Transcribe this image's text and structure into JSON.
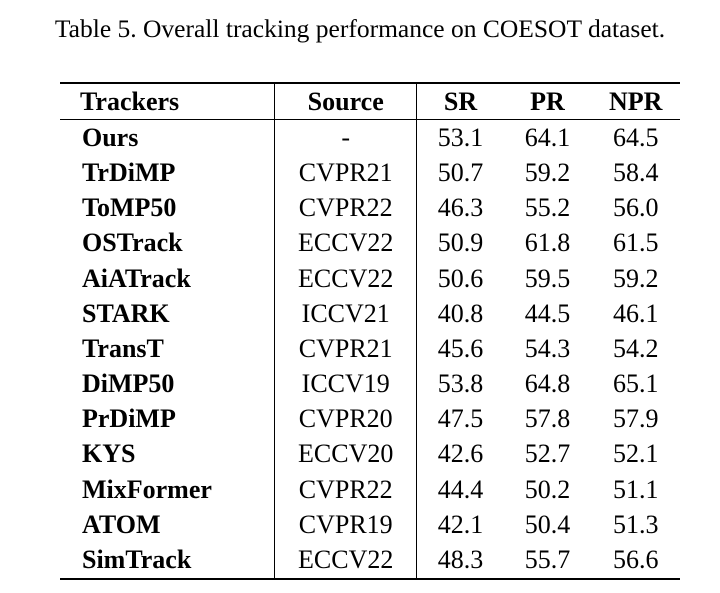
{
  "caption": "Table 5. Overall tracking performance on COESOT dataset.",
  "table": {
    "headers": [
      "Trackers",
      "Source",
      "SR",
      "PR",
      "NPR"
    ],
    "rows": [
      [
        "Ours",
        "-",
        "53.1",
        "64.1",
        "64.5"
      ],
      [
        "TrDiMP",
        "CVPR21",
        "50.7",
        "59.2",
        "58.4"
      ],
      [
        "ToMP50",
        "CVPR22",
        "46.3",
        "55.2",
        "56.0"
      ],
      [
        "OSTrack",
        "ECCV22",
        "50.9",
        "61.8",
        "61.5"
      ],
      [
        "AiATrack",
        "ECCV22",
        "50.6",
        "59.5",
        "59.2"
      ],
      [
        "STARK",
        "ICCV21",
        "40.8",
        "44.5",
        "46.1"
      ],
      [
        "TransT",
        "CVPR21",
        "45.6",
        "54.3",
        "54.2"
      ],
      [
        "DiMP50",
        "ICCV19",
        "53.8",
        "64.8",
        "65.1"
      ],
      [
        "PrDiMP",
        "CVPR20",
        "47.5",
        "57.8",
        "57.9"
      ],
      [
        "KYS",
        "ECCV20",
        "42.6",
        "52.7",
        "52.1"
      ],
      [
        "MixFormer",
        "CVPR22",
        "44.4",
        "50.2",
        "51.1"
      ],
      [
        "ATOM",
        "CVPR19",
        "42.1",
        "50.4",
        "51.3"
      ],
      [
        "SimTrack",
        "ECCV22",
        "48.3",
        "55.7",
        "56.6"
      ]
    ]
  }
}
